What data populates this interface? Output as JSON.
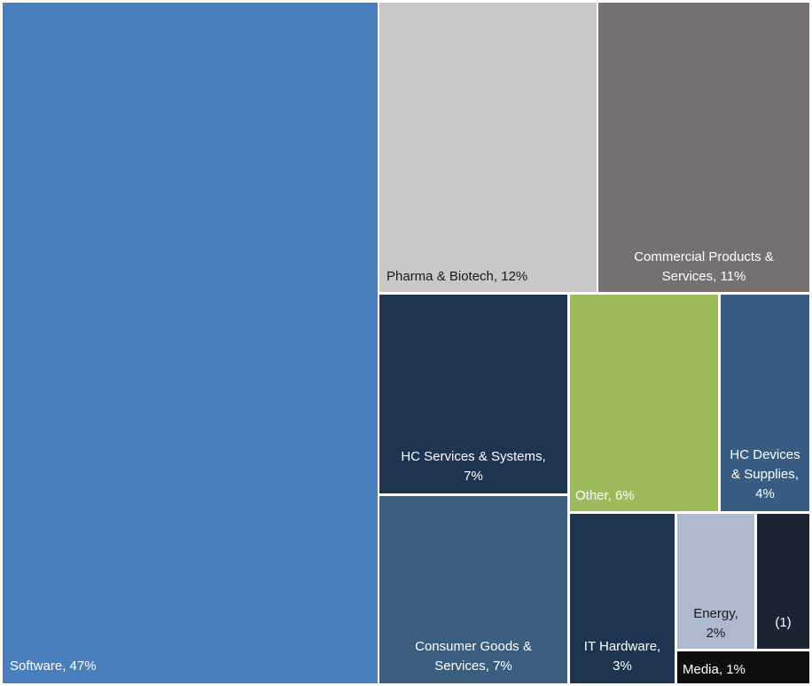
{
  "chart_data": {
    "type": "treemap",
    "title": "",
    "unit": "%",
    "segments": [
      {
        "name": "Software",
        "label_lines": [
          "Software, 47%"
        ],
        "value": 47,
        "color": "#4a7fbd",
        "text_color": "#ffffff"
      },
      {
        "name": "Pharma & Biotech",
        "label_lines": [
          "Pharma & Biotech, 12%"
        ],
        "value": 12,
        "color": "#c9c7c8",
        "text_color": "#1a1a1a"
      },
      {
        "name": "Commercial Products & Services",
        "label_lines": [
          "Commercial Products &",
          "Services, 11%"
        ],
        "value": 11,
        "color": "#767070",
        "text_color": "#ffffff"
      },
      {
        "name": "HC Services & Systems",
        "label_lines": [
          "HC Services & Systems,",
          "7%"
        ],
        "value": 7,
        "color": "#1f3450",
        "text_color": "#ffffff"
      },
      {
        "name": "Other",
        "label_lines": [
          "Other, 6%"
        ],
        "value": 6,
        "color": "#9bbb5a",
        "text_color": "#ffffff"
      },
      {
        "name": "HC Devices & Supplies",
        "label_lines": [
          "HC Devices",
          "& Supplies,",
          "4%"
        ],
        "value": 4,
        "color": "#375d82",
        "text_color": "#ffffff"
      },
      {
        "name": "Consumer Goods & Services",
        "label_lines": [
          "Consumer Goods &",
          "Services, 7%"
        ],
        "value": 7,
        "color": "#3a5e80",
        "text_color": "#ffffff"
      },
      {
        "name": "IT Hardware",
        "label_lines": [
          "IT Hardware,",
          "3%"
        ],
        "value": 3,
        "color": "#1f3450",
        "text_color": "#ffffff"
      },
      {
        "name": "Energy",
        "label_lines": [
          "Energy,",
          "2%"
        ],
        "value": 2,
        "color": "#adb9cc",
        "text_color": "#1a1a1a"
      },
      {
        "name": "(1)",
        "label_lines": [
          "(1)"
        ],
        "value": 1,
        "color": "#1c2632",
        "text_color": "#ffffff"
      },
      {
        "name": "Media",
        "label_lines": [
          "Media, 1%"
        ],
        "value": 1,
        "color": "#0f0f0f",
        "text_color": "#ffffff"
      }
    ]
  }
}
